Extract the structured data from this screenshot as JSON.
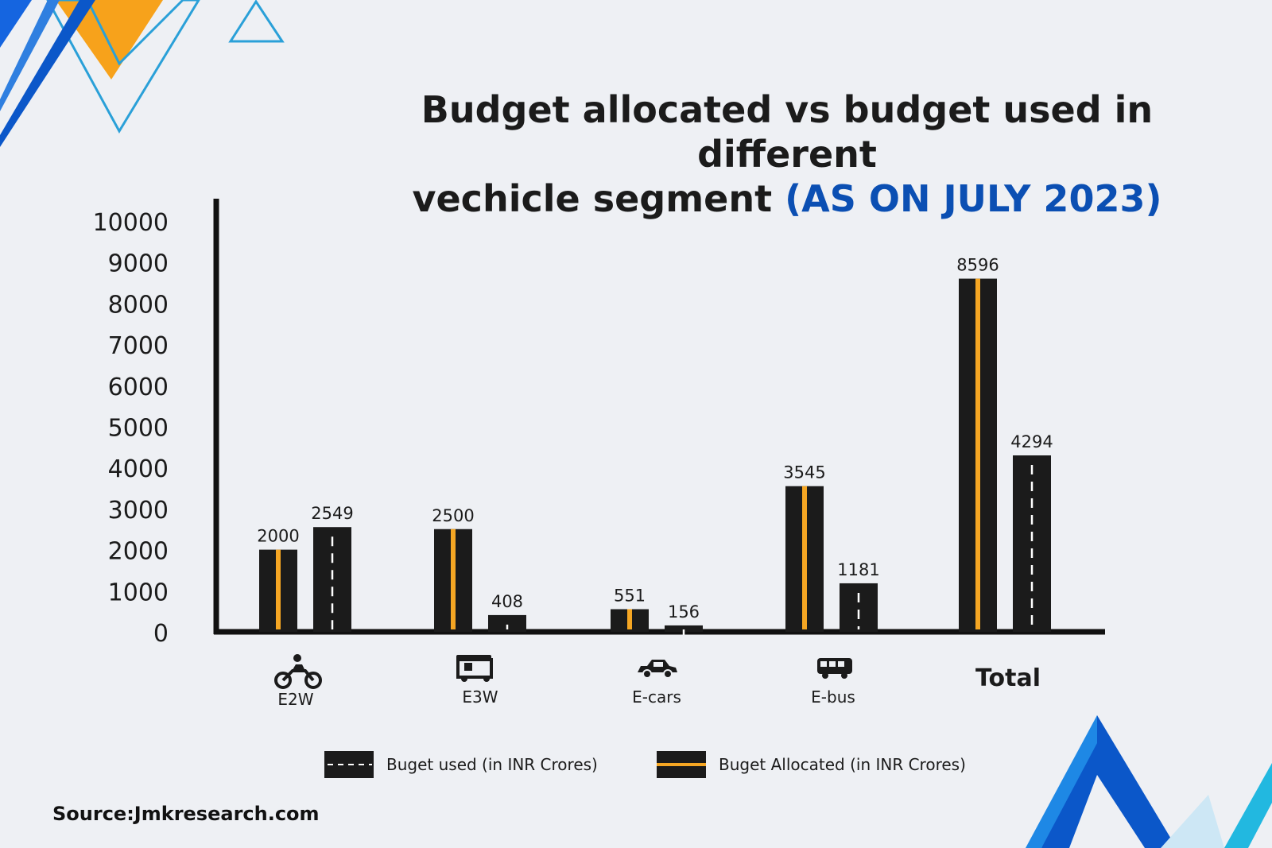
{
  "title": {
    "line1": "Budget allocated vs budget used in different",
    "line2_main": "vechicle segment ",
    "line2_highlight": "(AS ON JULY 2023)"
  },
  "colors": {
    "bar": "#1b1b1b",
    "allocated_stripe": "#f5a623",
    "used_stripe": "#ffffff",
    "highlight": "#0b4fb3"
  },
  "chart_data": {
    "type": "bar",
    "categories": [
      "E2W",
      "E3W",
      "E-cars",
      "E-bus",
      "Total"
    ],
    "series": [
      {
        "name": "Buget Allocated (in INR Crores)",
        "values": [
          2000,
          2500,
          551,
          3545,
          8596
        ]
      },
      {
        "name": "Buget used (in INR Crores)",
        "values": [
          2549,
          408,
          156,
          1181,
          4294
        ]
      }
    ],
    "y_ticks": [
      "0",
      "1000",
      "2000",
      "3000",
      "4000",
      "5000",
      "6000",
      "7000",
      "8000",
      "9000",
      "10000"
    ],
    "ylim": [
      0,
      10000
    ],
    "legend_position": "bottom",
    "category_icons": [
      "motorcycle-icon",
      "auto-rickshaw-icon",
      "car-icon",
      "bus-icon",
      null
    ]
  },
  "legend": {
    "used": "Buget used (in INR Crores)",
    "allocated": "Buget Allocated (in INR Crores)"
  },
  "source": "Source:Jmkresearch.com"
}
